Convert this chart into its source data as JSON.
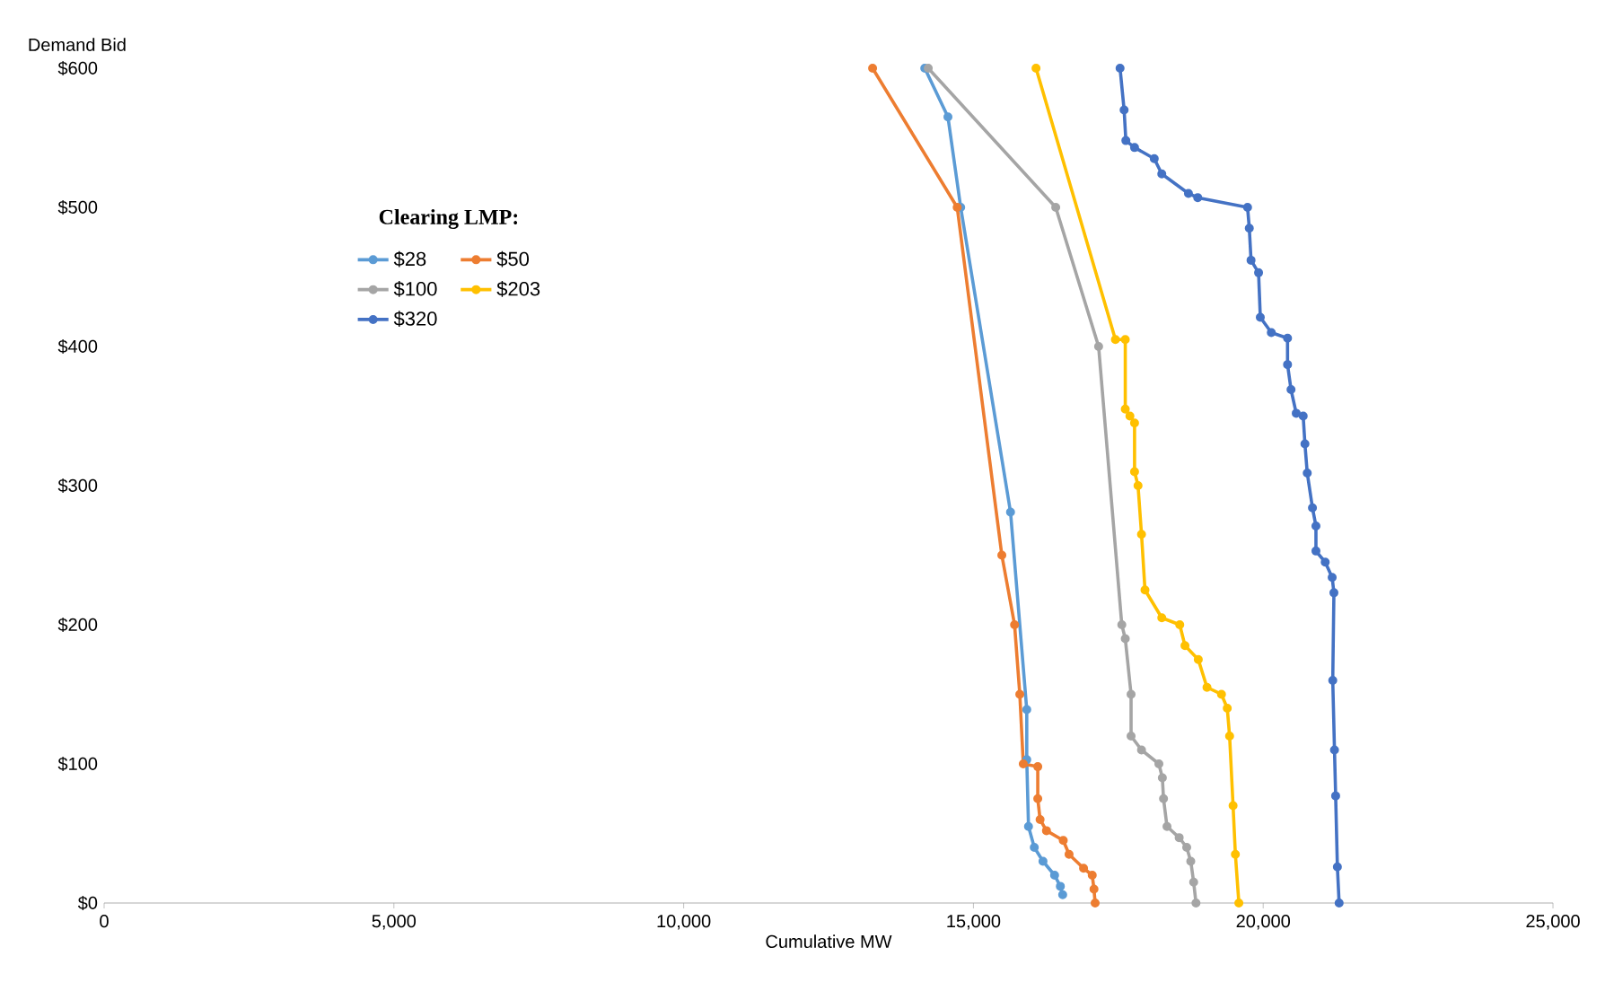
{
  "chart_data": {
    "type": "line",
    "xlabel": "Cumulative MW",
    "ylabel": "Demand Bid",
    "legend_title": "Clearing LMP:",
    "legend": "top left",
    "marker": "circle",
    "line_style": "solid",
    "grid": false,
    "xlim": [
      0,
      25000
    ],
    "ylim": [
      0,
      600
    ],
    "xticks": [
      0,
      {
        "value": 5000,
        "label": "5,000"
      },
      {
        "value": 10000,
        "label": "10,000"
      },
      {
        "value": 15000,
        "label": "15,000"
      },
      {
        "value": 20000,
        "label": "20,000"
      },
      {
        "value": 25000,
        "label": "25,000"
      }
    ],
    "yticks": [
      {
        "value": 0,
        "label": "$0"
      },
      {
        "value": 100,
        "label": "$100"
      },
      {
        "value": 200,
        "label": "$200"
      },
      {
        "value": 300,
        "label": "$300"
      },
      {
        "value": 400,
        "label": "$400"
      },
      {
        "value": 500,
        "label": "$500"
      },
      {
        "value": 600,
        "label": "$600"
      }
    ],
    "series": [
      {
        "name": "$28",
        "color": "#5b9bd5",
        "x": [
          14160,
          14560,
          14780,
          15640,
          15920,
          15920,
          15950,
          16050,
          16200,
          16400,
          16500,
          16540
        ],
        "values": [
          600,
          565,
          500,
          281,
          139,
          103,
          55,
          40,
          30,
          20,
          12,
          6
        ]
      },
      {
        "name": "$50",
        "color": "#ed7d31",
        "x": [
          13260,
          14720,
          15490,
          15710,
          15800,
          15860,
          16110,
          16110,
          16150,
          16260,
          16550,
          16650,
          16900,
          17050,
          17080,
          17100
        ],
        "values": [
          600,
          500,
          250,
          200,
          150,
          100,
          98,
          75,
          60,
          52,
          45,
          35,
          25,
          20,
          10,
          0
        ]
      },
      {
        "name": "$100",
        "color": "#a5a5a5",
        "x": [
          14220,
          16420,
          17160,
          17560,
          17620,
          17720,
          17720,
          17900,
          18200,
          18260,
          18280,
          18340,
          18550,
          18680,
          18750,
          18800,
          18840
        ],
        "values": [
          600,
          500,
          400,
          200,
          190,
          150,
          120,
          110,
          100,
          90,
          75,
          55,
          47,
          40,
          30,
          15,
          0
        ]
      },
      {
        "name": "$203",
        "color": "#ffc000",
        "x": [
          16080,
          17450,
          17620,
          17620,
          17700,
          17780,
          17780,
          17840,
          17900,
          17960,
          18250,
          18560,
          18650,
          18880,
          19030,
          19280,
          19380,
          19420,
          19480,
          19520,
          19580
        ],
        "values": [
          600,
          405,
          405,
          355,
          350,
          345,
          310,
          300,
          265,
          225,
          205,
          200,
          185,
          175,
          155,
          150,
          140,
          120,
          70,
          35,
          0
        ]
      },
      {
        "name": "$320",
        "color": "#4472c4",
        "x": [
          17530,
          17600,
          17630,
          17780,
          18120,
          18250,
          18710,
          18870,
          19730,
          19760,
          19790,
          19920,
          19950,
          20140,
          20420,
          20420,
          20480,
          20570,
          20690,
          20720,
          20760,
          20850,
          20910,
          20910,
          21070,
          21190,
          21220,
          21200,
          21230,
          21250,
          21280,
          21310
        ],
        "values": [
          600,
          570,
          548,
          543,
          535,
          524,
          510,
          507,
          500,
          485,
          462,
          453,
          421,
          410,
          406,
          387,
          369,
          352,
          350,
          330,
          309,
          284,
          271,
          253,
          245,
          234,
          223,
          160,
          110,
          77,
          26,
          0
        ]
      }
    ]
  }
}
